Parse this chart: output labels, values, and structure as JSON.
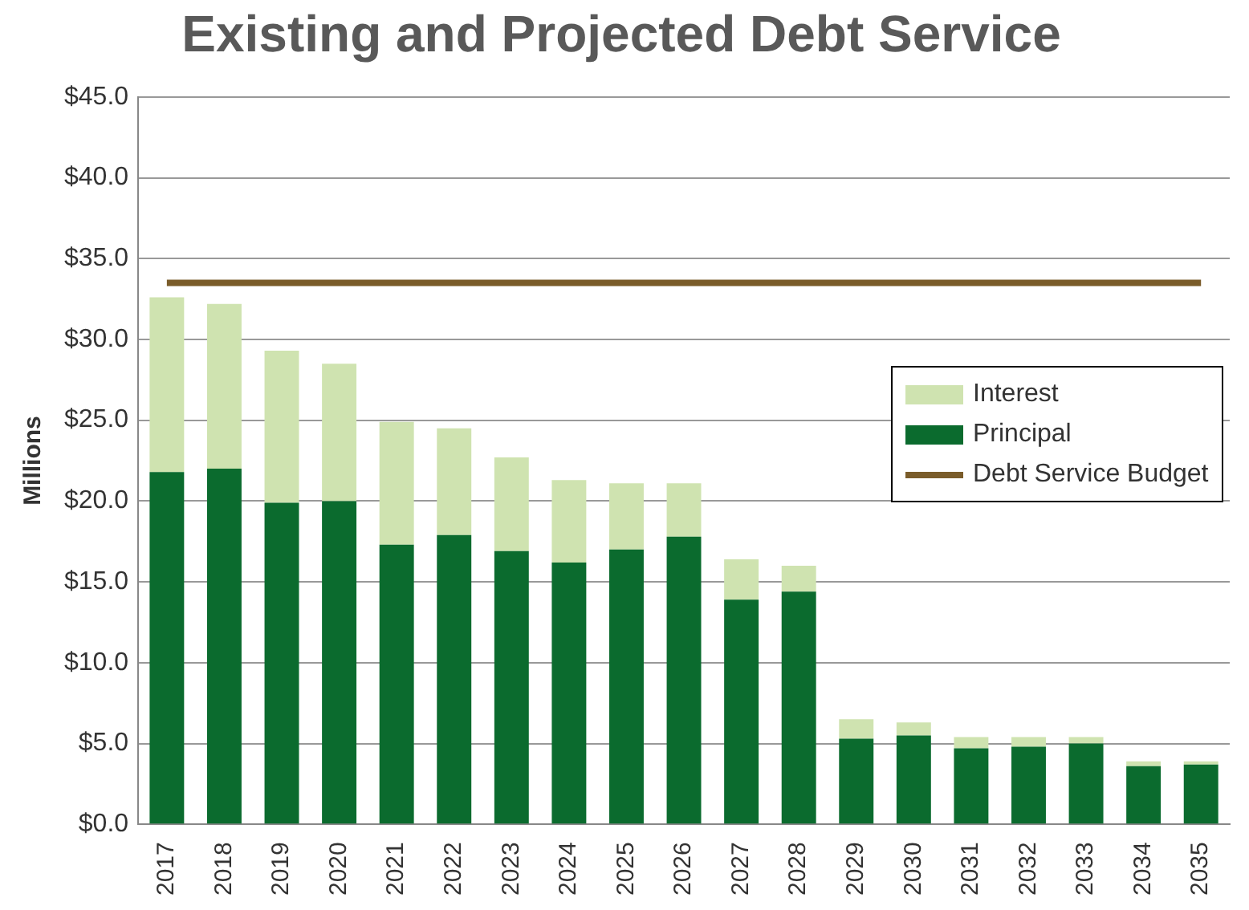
{
  "chart_data": {
    "type": "bar",
    "title": "Existing and Projected Debt Service",
    "ylabel": "Millions",
    "categories": [
      "2017",
      "2018",
      "2019",
      "2020",
      "2021",
      "2022",
      "2023",
      "2024",
      "2025",
      "2026",
      "2027",
      "2028",
      "2029",
      "2030",
      "2031",
      "2032",
      "2033",
      "2034",
      "2035"
    ],
    "stacked": true,
    "series": [
      {
        "name": "Principal",
        "color": "#0b6b2e",
        "values": [
          21.8,
          22.0,
          19.9,
          20.0,
          17.3,
          17.9,
          16.9,
          16.2,
          17.0,
          17.8,
          13.9,
          14.4,
          5.3,
          5.5,
          4.7,
          4.8,
          5.0,
          3.6,
          3.7
        ]
      },
      {
        "name": "Interest",
        "color": "#cfe3b0",
        "values": [
          10.8,
          10.2,
          9.4,
          8.5,
          7.6,
          6.6,
          5.8,
          5.1,
          4.1,
          3.3,
          2.5,
          1.6,
          1.2,
          0.8,
          0.7,
          0.6,
          0.4,
          0.3,
          0.2
        ]
      },
      {
        "name": "Debt Service Budget",
        "type": "line",
        "color": "#7a5c2a",
        "values": [
          33.5,
          33.5,
          33.5,
          33.5,
          33.5,
          33.5,
          33.5,
          33.5,
          33.5,
          33.5,
          33.5,
          33.5,
          33.5,
          33.5,
          33.5,
          33.5,
          33.5,
          33.5,
          33.5
        ]
      }
    ],
    "ylim": [
      0,
      45
    ],
    "yticks": [
      {
        "value": 0,
        "label": "$0.0"
      },
      {
        "value": 5,
        "label": "$5.0"
      },
      {
        "value": 10,
        "label": "$10.0"
      },
      {
        "value": 15,
        "label": "$15.0"
      },
      {
        "value": 20,
        "label": "$20.0"
      },
      {
        "value": 25,
        "label": "$25.0"
      },
      {
        "value": 30,
        "label": "$30.0"
      },
      {
        "value": 35,
        "label": "$35.0"
      },
      {
        "value": 40,
        "label": "$40.0"
      },
      {
        "value": 45,
        "label": "$45.0"
      }
    ],
    "grid": "y",
    "legend": "right",
    "marker": "none"
  }
}
